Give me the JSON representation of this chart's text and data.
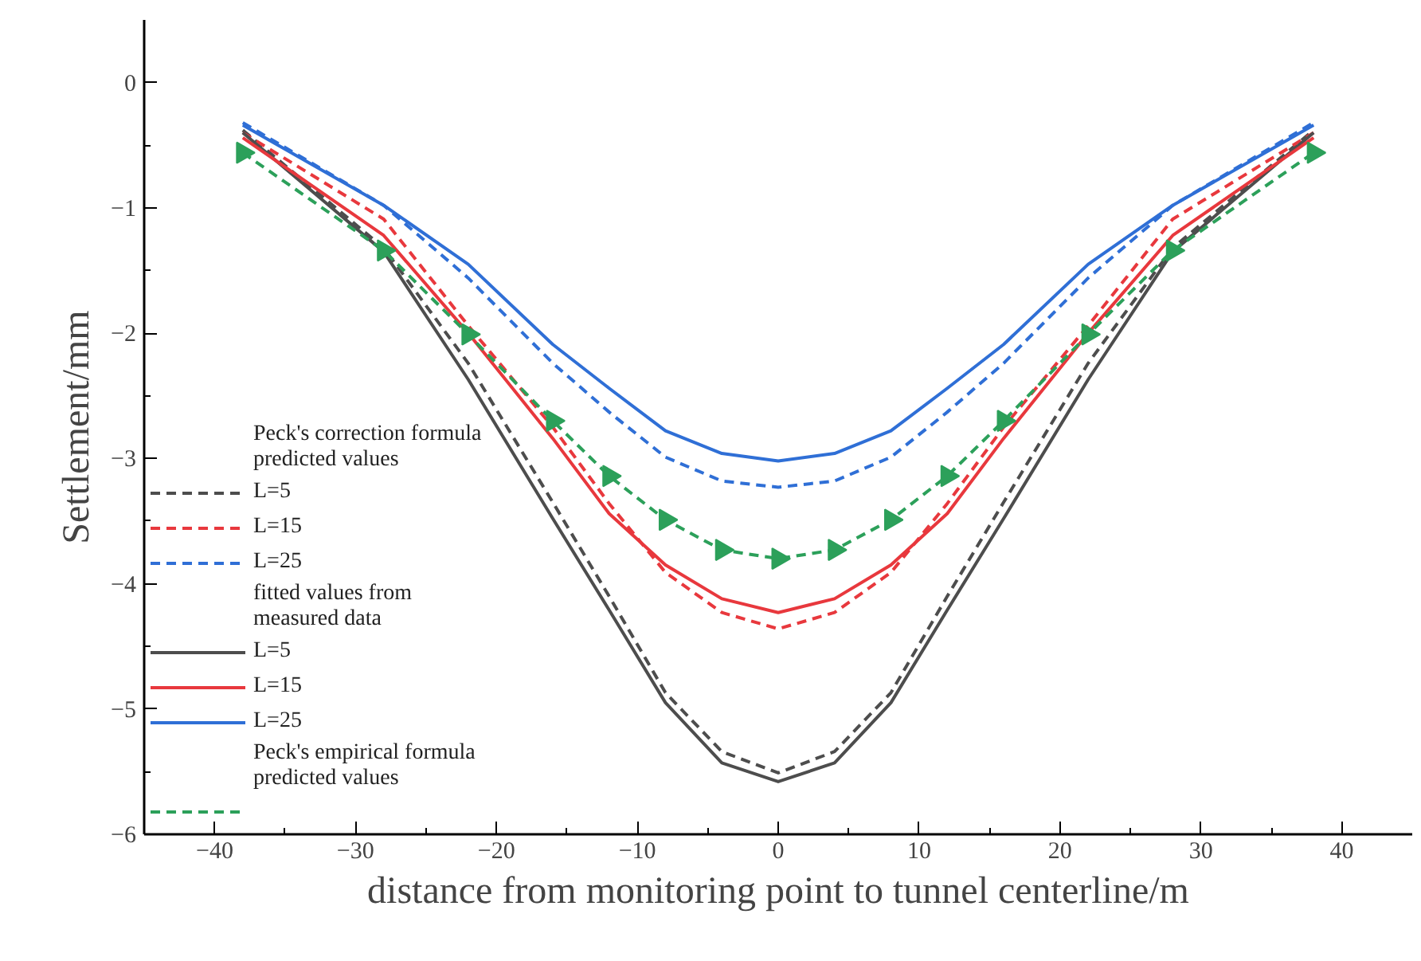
{
  "chart_data": {
    "type": "line",
    "xlabel": "distance from monitoring point to tunnel centerline/m",
    "ylabel": "Settlement/mm",
    "x": [
      -38,
      -28,
      -22,
      -16,
      -12,
      -8,
      -4,
      0,
      4,
      8,
      12,
      16,
      22,
      28,
      38
    ],
    "xlim": [
      -45,
      45
    ],
    "ylim": [
      -6,
      0.5
    ],
    "xticks": [
      -40,
      {
        "value": -35,
        "label": null
      },
      -30,
      {
        "value": -25,
        "label": null
      },
      -20,
      {
        "value": -15,
        "label": null
      },
      -10,
      {
        "value": -5,
        "label": null
      },
      0,
      {
        "value": 5,
        "label": null
      },
      10,
      {
        "value": 15,
        "label": null
      },
      20,
      {
        "value": 25,
        "label": null
      },
      30,
      {
        "value": 35,
        "label": null
      },
      40
    ],
    "yticks": [
      -6,
      {
        "value": -5.5,
        "label": null
      },
      -5,
      {
        "value": -4.5,
        "label": null
      },
      -4,
      {
        "value": -3.5,
        "label": null
      },
      -3,
      {
        "value": -2.5,
        "label": null
      },
      -2,
      {
        "value": -1.5,
        "label": null
      },
      -1,
      {
        "value": -0.5,
        "label": null
      },
      0
    ],
    "annotations": [
      "Peck's correction formula\npredicted values",
      "fitted values from\nmeasured data",
      "Peck's empirical formula\npredicted values"
    ],
    "legend": "bottom left",
    "grid": false,
    "series": [
      {
        "name": "L=5",
        "color": "#4d4d4d",
        "line_style": "dashed",
        "values": [
          -0.38,
          -1.32,
          -2.24,
          -3.35,
          -4.1,
          -4.87,
          -5.34,
          -5.51,
          -5.34,
          -4.87,
          -4.1,
          -3.35,
          -2.24,
          -1.32,
          -0.38
        ]
      },
      {
        "name": "L=15",
        "color": "#e8383d",
        "line_style": "dashed",
        "values": [
          -0.4,
          -1.09,
          -1.94,
          -2.75,
          -3.36,
          -3.91,
          -4.23,
          -4.36,
          -4.23,
          -3.91,
          -3.36,
          -2.75,
          -1.94,
          -1.09,
          -0.4
        ]
      },
      {
        "name": "L=25",
        "color": "#2f6fd6",
        "line_style": "dashed",
        "values": [
          -0.32,
          -0.98,
          -1.56,
          -2.24,
          -2.63,
          -2.99,
          -3.18,
          -3.23,
          -3.18,
          -2.99,
          -2.63,
          -2.24,
          -1.56,
          -0.98,
          -0.32
        ]
      },
      {
        "name": "L=5",
        "color": "#4d4d4d",
        "line_style": "solid",
        "values": [
          -0.4,
          -1.35,
          -2.37,
          -3.48,
          -4.21,
          -4.95,
          -5.43,
          -5.58,
          -5.43,
          -4.95,
          -4.21,
          -3.48,
          -2.37,
          -1.35,
          -0.4
        ]
      },
      {
        "name": "L=15",
        "color": "#e8383d",
        "line_style": "solid",
        "values": [
          -0.44,
          -1.22,
          -2.0,
          -2.84,
          -3.44,
          -3.85,
          -4.12,
          -4.23,
          -4.12,
          -3.85,
          -3.44,
          -2.84,
          -2.0,
          -1.22,
          -0.44
        ]
      },
      {
        "name": "L=25",
        "color": "#2f6fd6",
        "line_style": "solid",
        "values": [
          -0.34,
          -0.98,
          -1.45,
          -2.09,
          -2.44,
          -2.78,
          -2.96,
          -3.02,
          -2.96,
          -2.78,
          -2.44,
          -2.09,
          -1.45,
          -0.98,
          -0.34
        ]
      },
      {
        "color": "#2ca05a",
        "line_style": "dashed",
        "marker": "triangle",
        "values": [
          -0.56,
          -1.34,
          -2.01,
          -2.7,
          -3.14,
          -3.49,
          -3.73,
          -3.8,
          -3.73,
          -3.49,
          -3.14,
          -2.7,
          -2.01,
          -1.34,
          -0.56
        ]
      }
    ]
  }
}
